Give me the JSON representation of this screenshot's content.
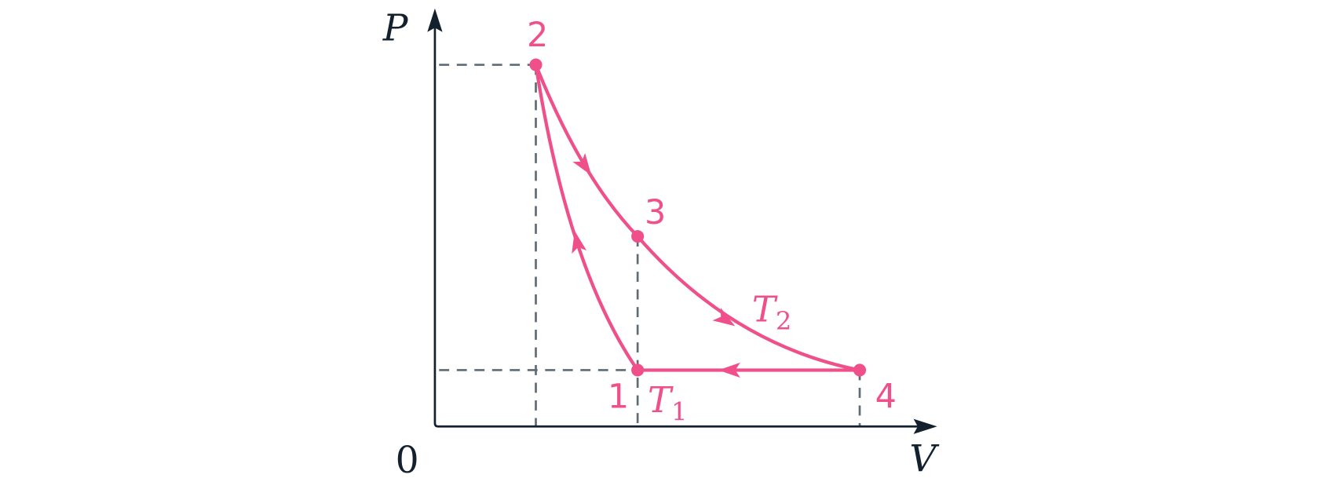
{
  "axes": {
    "y_label": "P",
    "x_label": "V",
    "origin_label": "0"
  },
  "points": [
    {
      "label": "1"
    },
    {
      "label": "2"
    },
    {
      "label": "3"
    },
    {
      "label": "4"
    }
  ],
  "isotherms": [
    {
      "symbol": "T",
      "subscript": "1"
    },
    {
      "symbol": "T",
      "subscript": "2"
    }
  ]
}
